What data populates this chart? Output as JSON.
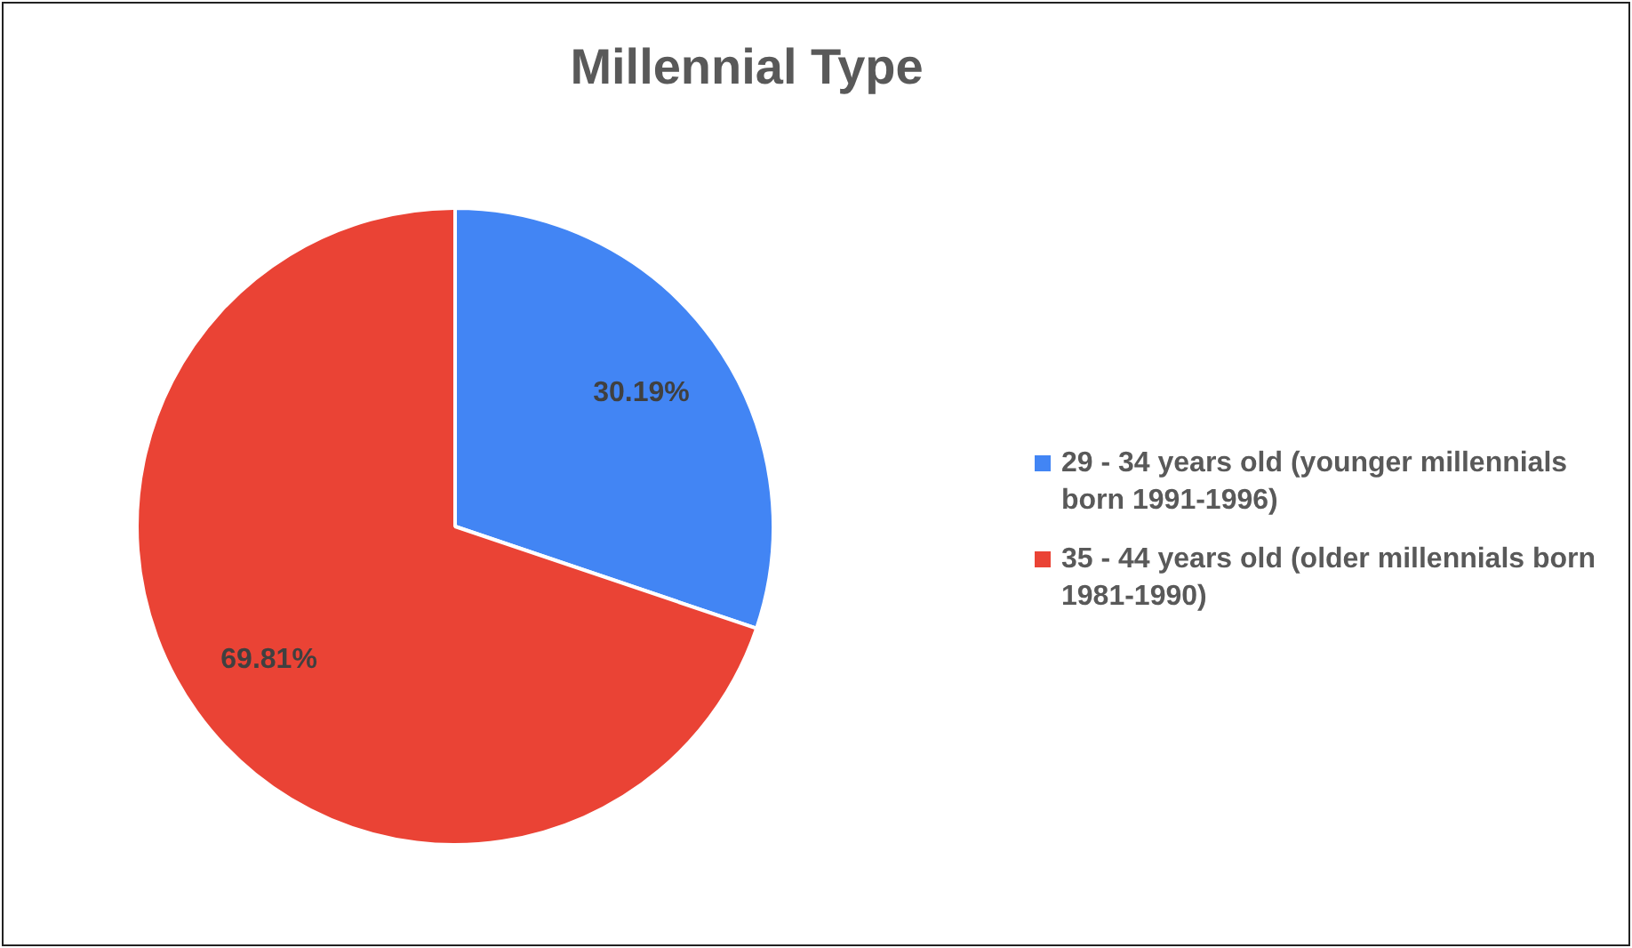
{
  "chart_data": {
    "type": "pie",
    "title": "Millennial Type",
    "categories": [
      "29 - 34 years old (younger millennials born 1991-1996)",
      "35 - 44 years old (older millennials born 1981-1990)"
    ],
    "values": [
      30.19,
      69.81
    ],
    "colors": [
      "#4285f4",
      "#ea4335"
    ],
    "value_labels": [
      "30.19%",
      "69.81%"
    ],
    "legend": "right"
  }
}
